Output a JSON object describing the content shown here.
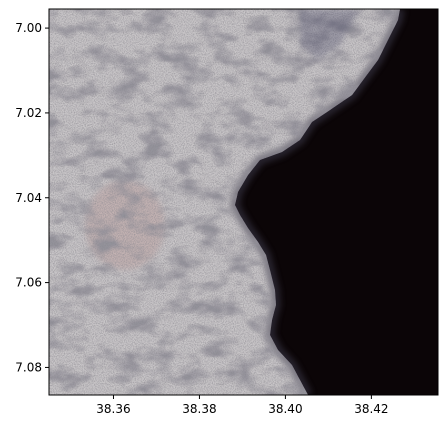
{
  "chart_data": {
    "type": "raster-image",
    "x_axis": {
      "range": [
        38.345,
        38.4355
      ],
      "ticks": [
        38.36,
        38.38,
        38.4,
        38.42
      ],
      "tick_labels": [
        "38.36",
        "38.38",
        "38.40",
        "38.42"
      ]
    },
    "y_axis": {
      "range": [
        7.0865,
        6.9955
      ],
      "inverted": true,
      "ticks": [
        7.0,
        7.02,
        7.04,
        7.06,
        7.08
      ],
      "tick_labels": [
        "7.00",
        "7.02",
        "7.04",
        "7.06",
        "7.08"
      ]
    },
    "grid": false,
    "legend": "none"
  },
  "colors": {
    "land": "#c9c6c8",
    "land_shadow": "#8a8790",
    "vegetation": "#4a4650",
    "water": "#0b0507",
    "shore_haze": "#2a2836",
    "reddish_patch": "#b88f8c",
    "axis": "#000000"
  }
}
